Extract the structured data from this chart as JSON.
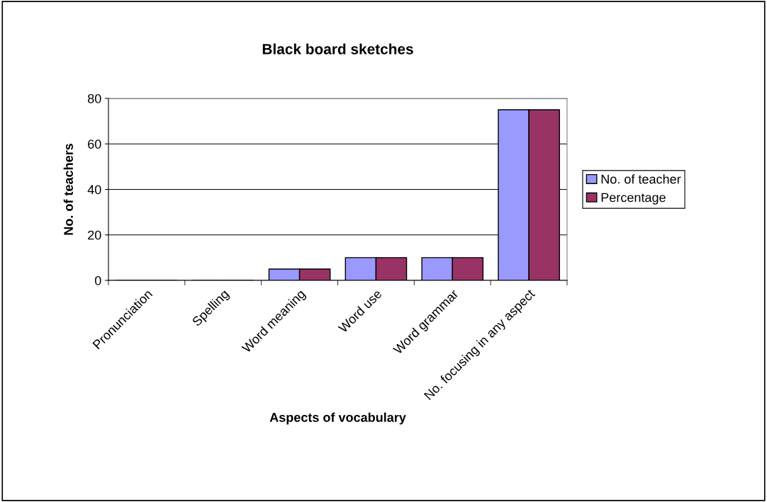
{
  "chart_data": {
    "type": "bar",
    "title": "Black board sketches",
    "xlabel": "Aspects of vocabulary",
    "ylabel": "No. of teachers",
    "categories": [
      "Pronunciation",
      "Spelling",
      "Word meaning",
      "Word use",
      "Word grammar",
      "No. focusing in any aspect"
    ],
    "series": [
      {
        "name": "No. of teacher",
        "color": "#9999ff",
        "values": [
          0,
          0,
          5,
          10,
          10,
          75
        ]
      },
      {
        "name": "Percentage",
        "color": "#993366",
        "values": [
          0,
          0,
          5,
          10,
          10,
          75
        ]
      }
    ],
    "ylim": [
      0,
      80
    ],
    "yticks": [
      0,
      20,
      40,
      60,
      80
    ],
    "grid": "y",
    "legend": "right"
  }
}
